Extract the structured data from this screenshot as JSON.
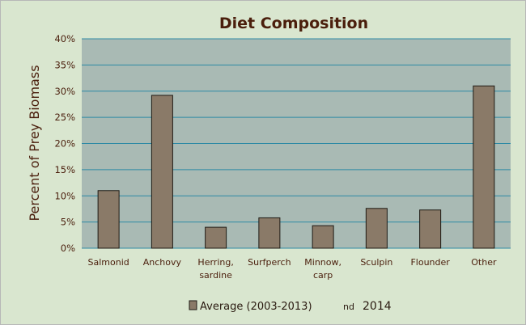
{
  "chart_data": {
    "type": "bar",
    "title": "Diet Composition",
    "xlabel": "",
    "ylabel": "Percent of Prey Biomass",
    "ylim": [
      0,
      40
    ],
    "ytick_step": 5,
    "ytick_labels": [
      "0%",
      "5%",
      "10%",
      "15%",
      "20%",
      "25%",
      "30%",
      "35%",
      "40%"
    ],
    "categories": [
      [
        "Salmonid"
      ],
      [
        "Anchovy"
      ],
      [
        "Herring,",
        "sardine"
      ],
      [
        "Surfperch"
      ],
      [
        "Minnow,",
        "carp"
      ],
      [
        "Sculpin"
      ],
      [
        "Flounder"
      ],
      [
        "Other"
      ]
    ],
    "series": [
      {
        "name": "Average (2003-2013)",
        "values": [
          11.0,
          29.2,
          4.0,
          5.8,
          4.3,
          7.6,
          7.3,
          31.0
        ]
      }
    ],
    "legend_fragments": [
      "nd",
      "2014"
    ],
    "grid": true,
    "legend_position": "bottom"
  },
  "colors": {
    "background": "#d9e6cf",
    "plot_area": "#a9bab4",
    "grid": "#2e8aa5",
    "bar_fill": "#8a7a68",
    "bar_stroke": "#1f1a14",
    "text": "#4a1e0c"
  }
}
